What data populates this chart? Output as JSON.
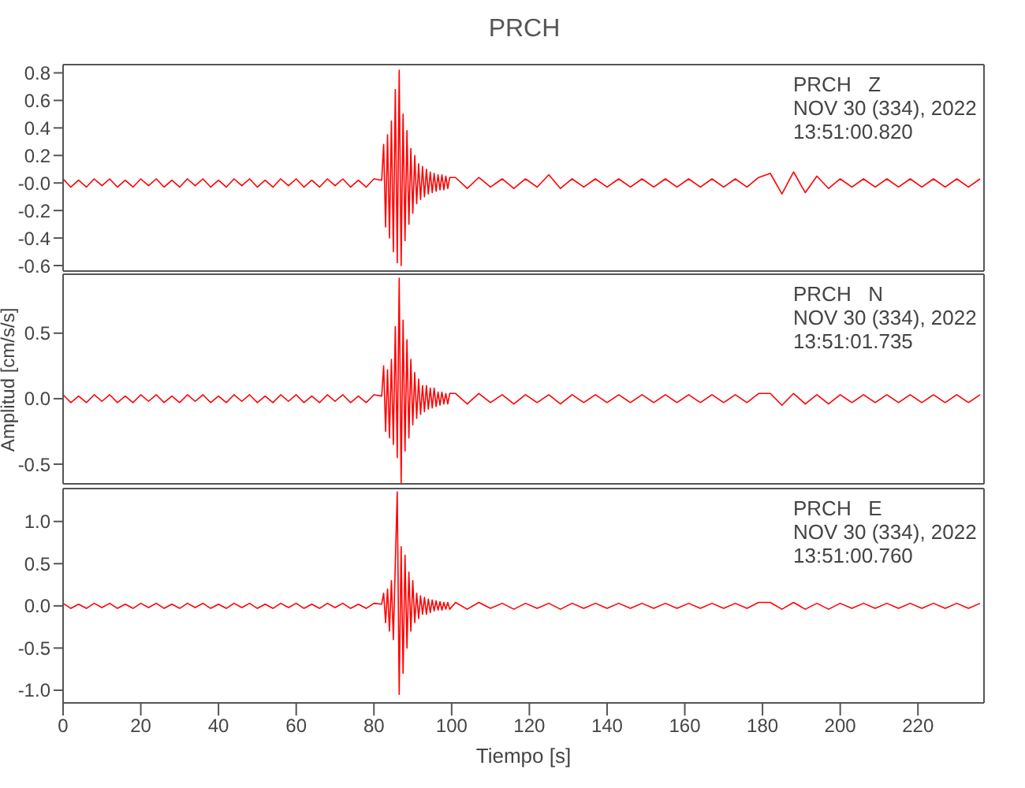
{
  "chart_data": [
    {
      "type": "line",
      "title": "PRCH",
      "annotations": [
        "PRCH   Z",
        "NOV 30 (334), 2022",
        "13:51:00.820"
      ],
      "xlim": [
        0,
        237
      ],
      "ylim": [
        -0.64,
        0.86
      ],
      "yticks": [
        -0.6,
        -0.4,
        -0.2,
        {
          "value": 0,
          "label": "-0.0"
        },
        0.2,
        0.4,
        0.6,
        0.8
      ],
      "tick_labels": "y",
      "x": [
        0,
        2,
        4,
        6,
        8,
        10,
        12,
        14,
        16,
        18,
        20,
        22,
        24,
        26,
        28,
        30,
        32,
        34,
        36,
        38,
        40,
        42,
        44,
        46,
        48,
        50,
        52,
        54,
        56,
        58,
        60,
        62,
        64,
        66,
        68,
        70,
        72,
        74,
        76,
        78,
        80,
        82,
        82.5,
        83,
        83.5,
        84,
        84.5,
        85,
        85.5,
        86,
        86.5,
        87,
        87.5,
        88,
        88.5,
        89,
        89.5,
        90,
        90.5,
        91,
        91.5,
        92,
        92.5,
        93,
        93.5,
        94,
        94.5,
        95,
        95.5,
        96,
        96.5,
        97,
        97.5,
        98,
        98.5,
        99,
        99.5,
        101,
        104,
        107,
        110,
        113,
        116,
        119,
        122,
        125,
        128,
        131,
        134,
        137,
        140,
        143,
        146,
        149,
        152,
        155,
        158,
        161,
        164,
        167,
        170,
        173,
        176,
        179,
        182,
        185,
        188,
        191,
        194,
        197,
        200,
        203,
        206,
        209,
        212,
        215,
        218,
        221,
        224,
        227,
        230,
        233,
        236
      ],
      "series": [
        {
          "color": "#ff0000",
          "values": [
            0.03,
            -0.03,
            0.02,
            -0.03,
            0.03,
            -0.02,
            0.03,
            -0.03,
            0.02,
            -0.03,
            0.03,
            -0.02,
            0.03,
            -0.03,
            0.02,
            -0.03,
            0.03,
            -0.02,
            0.03,
            -0.03,
            0.02,
            -0.03,
            0.03,
            -0.02,
            0.03,
            -0.03,
            0.02,
            -0.03,
            0.03,
            -0.02,
            0.03,
            -0.03,
            0.02,
            -0.03,
            0.03,
            -0.02,
            0.03,
            -0.03,
            0.02,
            -0.03,
            0.03,
            0.02,
            0.28,
            -0.32,
            0.35,
            -0.4,
            0.45,
            -0.5,
            0.68,
            -0.58,
            0.82,
            -0.6,
            0.5,
            -0.42,
            0.38,
            -0.3,
            0.25,
            -0.22,
            0.2,
            -0.15,
            0.14,
            -0.12,
            0.12,
            -0.1,
            0.1,
            -0.08,
            0.08,
            -0.07,
            0.07,
            -0.06,
            0.06,
            -0.05,
            0.06,
            -0.05,
            0.05,
            -0.04,
            0.04,
            0.04,
            -0.04,
            0.04,
            -0.03,
            0.03,
            -0.04,
            0.03,
            -0.03,
            0.06,
            -0.04,
            0.03,
            -0.03,
            0.03,
            -0.03,
            0.03,
            -0.03,
            0.03,
            -0.03,
            0.03,
            -0.03,
            0.03,
            -0.03,
            0.03,
            -0.03,
            0.03,
            -0.03,
            0.04,
            0.07,
            -0.08,
            0.08,
            -0.07,
            0.05,
            -0.04,
            0.03,
            -0.03,
            0.03,
            -0.03,
            0.03,
            -0.03,
            0.03,
            -0.03,
            0.03,
            -0.03,
            0.03,
            -0.03,
            0.03
          ]
        }
      ]
    },
    {
      "type": "line",
      "ylabel": "Amplitud [cm/s/s]",
      "annotations": [
        "PRCH   N",
        "NOV 30 (334), 2022",
        "13:51:01.735"
      ],
      "xlim": [
        0,
        237
      ],
      "ylim": [
        -0.65,
        0.95
      ],
      "yticks": [
        {
          "value": -0.5,
          "label": "-0.5"
        },
        {
          "value": 0,
          "label": "0.0"
        },
        {
          "value": 0.5,
          "label": "0.5"
        }
      ],
      "tick_labels": "y",
      "x": [
        0,
        2,
        4,
        6,
        8,
        10,
        12,
        14,
        16,
        18,
        20,
        22,
        24,
        26,
        28,
        30,
        32,
        34,
        36,
        38,
        40,
        42,
        44,
        46,
        48,
        50,
        52,
        54,
        56,
        58,
        60,
        62,
        64,
        66,
        68,
        70,
        72,
        74,
        76,
        78,
        80,
        82,
        82.5,
        83,
        83.5,
        84,
        84.5,
        85,
        85.5,
        86,
        86.5,
        87,
        87.5,
        88,
        88.5,
        89,
        89.5,
        90,
        90.5,
        91,
        91.5,
        92,
        92.5,
        93,
        93.5,
        94,
        94.5,
        95,
        95.5,
        96,
        96.5,
        97,
        97.5,
        98,
        98.5,
        99,
        99.5,
        101,
        104,
        107,
        110,
        113,
        116,
        119,
        122,
        125,
        128,
        131,
        134,
        137,
        140,
        143,
        146,
        149,
        152,
        155,
        158,
        161,
        164,
        167,
        170,
        173,
        176,
        179,
        182,
        185,
        188,
        191,
        194,
        197,
        200,
        203,
        206,
        209,
        212,
        215,
        218,
        221,
        224,
        227,
        230,
        233,
        236
      ],
      "series": [
        {
          "color": "#ff0000",
          "values": [
            0.03,
            -0.03,
            0.02,
            -0.03,
            0.03,
            -0.02,
            0.03,
            -0.03,
            0.02,
            -0.03,
            0.03,
            -0.02,
            0.03,
            -0.03,
            0.02,
            -0.03,
            0.03,
            -0.02,
            0.03,
            -0.03,
            0.02,
            -0.03,
            0.03,
            -0.02,
            0.03,
            -0.03,
            0.02,
            -0.03,
            0.03,
            -0.02,
            0.03,
            -0.03,
            0.02,
            -0.03,
            0.03,
            -0.02,
            0.03,
            -0.03,
            0.02,
            -0.03,
            0.03,
            0.02,
            0.25,
            -0.25,
            0.22,
            -0.3,
            0.3,
            -0.35,
            0.55,
            -0.45,
            0.92,
            -0.65,
            0.6,
            -0.4,
            0.45,
            -0.3,
            0.3,
            -0.2,
            0.2,
            -0.15,
            0.15,
            -0.12,
            0.1,
            -0.1,
            0.1,
            -0.08,
            0.08,
            -0.07,
            0.08,
            -0.06,
            0.05,
            -0.05,
            0.05,
            -0.04,
            0.04,
            -0.04,
            0.04,
            0.04,
            -0.04,
            0.04,
            -0.03,
            0.03,
            -0.04,
            0.03,
            -0.03,
            0.03,
            -0.04,
            0.03,
            -0.03,
            0.03,
            -0.03,
            0.03,
            -0.03,
            0.03,
            -0.03,
            0.03,
            -0.03,
            0.03,
            -0.03,
            0.03,
            -0.03,
            0.03,
            -0.03,
            0.04,
            0.04,
            -0.05,
            0.04,
            -0.04,
            0.03,
            -0.04,
            0.03,
            -0.03,
            0.03,
            -0.03,
            0.03,
            -0.03,
            0.03,
            -0.03,
            0.03,
            -0.03,
            0.03,
            -0.03,
            0.03
          ]
        }
      ]
    },
    {
      "type": "line",
      "xlabel": "Tiempo [s]",
      "annotations": [
        "PRCH   E",
        "NOV 30 (334), 2022",
        "13:51:00.760"
      ],
      "xlim": [
        0,
        237
      ],
      "xticks": [
        0,
        20,
        40,
        60,
        80,
        100,
        120,
        140,
        160,
        180,
        200,
        220
      ],
      "ylim": [
        -1.15,
        1.39
      ],
      "yticks": [
        {
          "value": -1,
          "label": "-1.0"
        },
        {
          "value": -0.5,
          "label": "-0.5"
        },
        {
          "value": 0,
          "label": "0.0"
        },
        {
          "value": 0.5,
          "label": "0.5"
        },
        {
          "value": 1,
          "label": "1.0"
        }
      ],
      "x": [
        0,
        2,
        4,
        6,
        8,
        10,
        12,
        14,
        16,
        18,
        20,
        22,
        24,
        26,
        28,
        30,
        32,
        34,
        36,
        38,
        40,
        42,
        44,
        46,
        48,
        50,
        52,
        54,
        56,
        58,
        60,
        62,
        64,
        66,
        68,
        70,
        72,
        74,
        76,
        78,
        80,
        82,
        82.5,
        83,
        83.5,
        84,
        84.5,
        85,
        85.5,
        86,
        86.5,
        87,
        87.5,
        88,
        88.5,
        89,
        89.5,
        90,
        90.5,
        91,
        91.5,
        92,
        92.5,
        93,
        93.5,
        94,
        94.5,
        95,
        95.5,
        96,
        96.5,
        97,
        97.5,
        98,
        98.5,
        99,
        99.5,
        101,
        104,
        107,
        110,
        113,
        116,
        119,
        122,
        125,
        128,
        131,
        134,
        137,
        140,
        143,
        146,
        149,
        152,
        155,
        158,
        161,
        164,
        167,
        170,
        173,
        176,
        179,
        182,
        185,
        188,
        191,
        194,
        197,
        200,
        203,
        206,
        209,
        212,
        215,
        218,
        221,
        224,
        227,
        230,
        233,
        236
      ],
      "series": [
        {
          "color": "#ff0000",
          "values": [
            0.03,
            -0.03,
            0.02,
            -0.03,
            0.03,
            -0.02,
            0.03,
            -0.03,
            0.02,
            -0.03,
            0.03,
            -0.02,
            0.03,
            -0.03,
            0.02,
            -0.03,
            0.03,
            -0.02,
            0.03,
            -0.03,
            0.02,
            -0.03,
            0.03,
            -0.02,
            0.03,
            -0.03,
            0.02,
            -0.03,
            0.03,
            -0.02,
            0.03,
            -0.03,
            0.02,
            -0.03,
            0.03,
            -0.02,
            0.03,
            -0.03,
            0.02,
            -0.03,
            0.03,
            0.02,
            0.15,
            -0.2,
            0.2,
            -0.3,
            0.3,
            -0.4,
            0.5,
            1.35,
            -1.05,
            0.7,
            -0.8,
            0.6,
            -0.5,
            0.4,
            -0.3,
            0.3,
            -0.2,
            0.15,
            -0.15,
            0.12,
            -0.1,
            0.1,
            -0.1,
            0.08,
            -0.08,
            0.07,
            -0.06,
            0.06,
            -0.05,
            0.05,
            -0.05,
            0.04,
            -0.04,
            0.04,
            -0.04,
            0.04,
            -0.04,
            0.04,
            -0.03,
            0.03,
            -0.04,
            0.03,
            -0.03,
            0.03,
            -0.04,
            0.03,
            -0.03,
            0.03,
            -0.03,
            0.03,
            -0.03,
            0.03,
            -0.03,
            0.03,
            -0.03,
            0.03,
            -0.03,
            0.03,
            -0.03,
            0.03,
            -0.03,
            0.04,
            0.04,
            -0.04,
            0.04,
            -0.04,
            0.03,
            -0.04,
            0.03,
            -0.03,
            0.03,
            -0.03,
            0.03,
            -0.03,
            0.03,
            -0.03,
            0.03,
            -0.03,
            0.03,
            -0.03,
            0.03
          ]
        }
      ]
    }
  ]
}
